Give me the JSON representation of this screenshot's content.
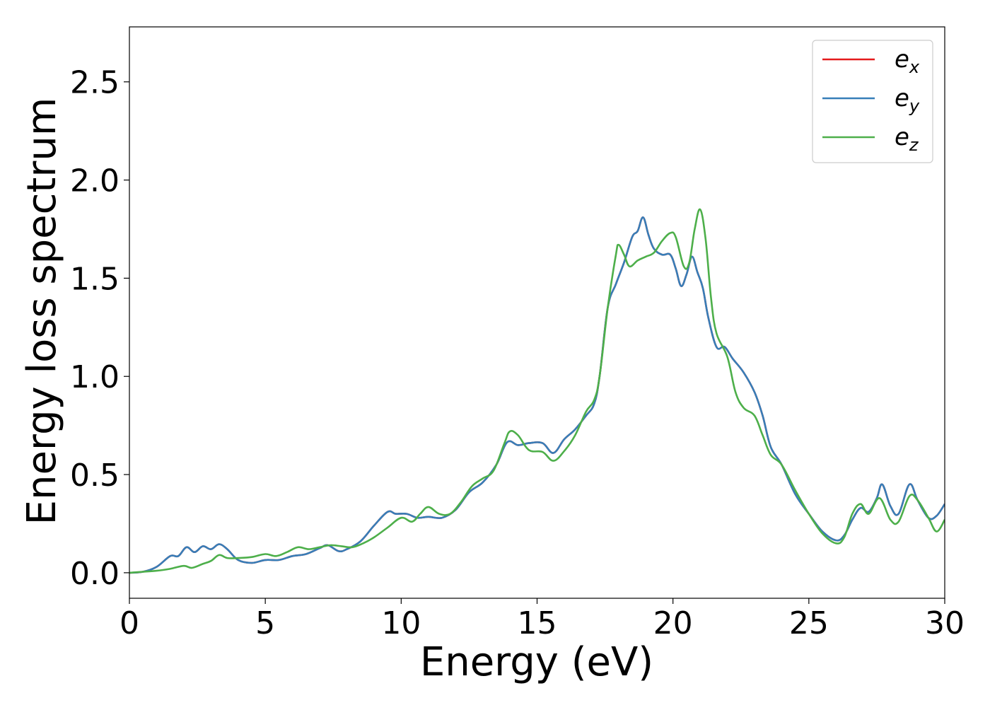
{
  "chart_data": {
    "type": "line",
    "title": "",
    "xlabel": "Energy (eV)",
    "ylabel": "Energy loss spectrum",
    "xlim": [
      0,
      30
    ],
    "ylim": [
      -0.13,
      2.78
    ],
    "xticks": [
      0,
      5,
      10,
      15,
      20,
      25,
      30
    ],
    "xtick_labels": [
      "0",
      "5",
      "10",
      "15",
      "20",
      "25",
      "30"
    ],
    "yticks": [
      0.0,
      0.5,
      1.0,
      1.5,
      2.0,
      2.5
    ],
    "ytick_labels": [
      "0.0",
      "0.5",
      "1.0",
      "1.5",
      "2.0",
      "2.5"
    ],
    "grid": false,
    "legend_position": "top-right",
    "series": [
      {
        "name": "e_x",
        "legend_base": "e",
        "legend_sub": "x",
        "color": "#e41a1c",
        "points": [
          [
            0,
            0.0
          ],
          [
            0.5,
            0.005
          ],
          [
            1.0,
            0.03
          ],
          [
            1.5,
            0.085
          ],
          [
            1.8,
            0.085
          ],
          [
            2.1,
            0.13
          ],
          [
            2.4,
            0.105
          ],
          [
            2.7,
            0.135
          ],
          [
            3.0,
            0.12
          ],
          [
            3.3,
            0.145
          ],
          [
            3.6,
            0.12
          ],
          [
            4.0,
            0.065
          ],
          [
            4.5,
            0.05
          ],
          [
            5.0,
            0.065
          ],
          [
            5.5,
            0.065
          ],
          [
            6.0,
            0.085
          ],
          [
            6.5,
            0.095
          ],
          [
            7.0,
            0.125
          ],
          [
            7.3,
            0.14
          ],
          [
            7.7,
            0.11
          ],
          [
            8.0,
            0.12
          ],
          [
            8.5,
            0.16
          ],
          [
            9.0,
            0.24
          ],
          [
            9.5,
            0.31
          ],
          [
            9.8,
            0.3
          ],
          [
            10.2,
            0.3
          ],
          [
            10.6,
            0.28
          ],
          [
            11.0,
            0.285
          ],
          [
            11.5,
            0.28
          ],
          [
            12.0,
            0.32
          ],
          [
            12.5,
            0.41
          ],
          [
            13.0,
            0.46
          ],
          [
            13.5,
            0.55
          ],
          [
            13.9,
            0.665
          ],
          [
            14.3,
            0.65
          ],
          [
            14.7,
            0.66
          ],
          [
            15.2,
            0.66
          ],
          [
            15.6,
            0.61
          ],
          [
            16.0,
            0.68
          ],
          [
            16.4,
            0.73
          ],
          [
            16.8,
            0.8
          ],
          [
            17.1,
            0.86
          ],
          [
            17.3,
            1.0
          ],
          [
            17.6,
            1.35
          ],
          [
            17.9,
            1.47
          ],
          [
            18.2,
            1.58
          ],
          [
            18.5,
            1.71
          ],
          [
            18.7,
            1.74
          ],
          [
            18.9,
            1.81
          ],
          [
            19.1,
            1.72
          ],
          [
            19.3,
            1.65
          ],
          [
            19.6,
            1.62
          ],
          [
            19.9,
            1.62
          ],
          [
            20.1,
            1.55
          ],
          [
            20.3,
            1.46
          ],
          [
            20.5,
            1.52
          ],
          [
            20.7,
            1.61
          ],
          [
            20.9,
            1.53
          ],
          [
            21.1,
            1.45
          ],
          [
            21.3,
            1.3
          ],
          [
            21.6,
            1.15
          ],
          [
            21.9,
            1.15
          ],
          [
            22.2,
            1.09
          ],
          [
            22.6,
            1.02
          ],
          [
            23.0,
            0.92
          ],
          [
            23.3,
            0.8
          ],
          [
            23.6,
            0.64
          ],
          [
            24.0,
            0.55
          ],
          [
            24.5,
            0.4
          ],
          [
            25.0,
            0.3
          ],
          [
            25.5,
            0.21
          ],
          [
            26.0,
            0.165
          ],
          [
            26.3,
            0.19
          ],
          [
            26.6,
            0.27
          ],
          [
            26.9,
            0.33
          ],
          [
            27.2,
            0.31
          ],
          [
            27.5,
            0.38
          ],
          [
            27.7,
            0.45
          ],
          [
            28.0,
            0.34
          ],
          [
            28.3,
            0.3
          ],
          [
            28.7,
            0.45
          ],
          [
            29.0,
            0.37
          ],
          [
            29.4,
            0.28
          ],
          [
            29.7,
            0.29
          ],
          [
            30.0,
            0.35
          ]
        ]
      },
      {
        "name": "e_y",
        "legend_base": "e",
        "legend_sub": "y",
        "color": "#377eb8",
        "points": [
          [
            0,
            0.0
          ],
          [
            0.5,
            0.005
          ],
          [
            1.0,
            0.03
          ],
          [
            1.5,
            0.085
          ],
          [
            1.8,
            0.085
          ],
          [
            2.1,
            0.13
          ],
          [
            2.4,
            0.105
          ],
          [
            2.7,
            0.135
          ],
          [
            3.0,
            0.12
          ],
          [
            3.3,
            0.145
          ],
          [
            3.6,
            0.12
          ],
          [
            4.0,
            0.065
          ],
          [
            4.5,
            0.05
          ],
          [
            5.0,
            0.065
          ],
          [
            5.5,
            0.065
          ],
          [
            6.0,
            0.085
          ],
          [
            6.5,
            0.095
          ],
          [
            7.0,
            0.125
          ],
          [
            7.3,
            0.14
          ],
          [
            7.7,
            0.11
          ],
          [
            8.0,
            0.12
          ],
          [
            8.5,
            0.16
          ],
          [
            9.0,
            0.24
          ],
          [
            9.5,
            0.31
          ],
          [
            9.8,
            0.3
          ],
          [
            10.2,
            0.3
          ],
          [
            10.6,
            0.28
          ],
          [
            11.0,
            0.285
          ],
          [
            11.5,
            0.28
          ],
          [
            12.0,
            0.32
          ],
          [
            12.5,
            0.41
          ],
          [
            13.0,
            0.46
          ],
          [
            13.5,
            0.55
          ],
          [
            13.9,
            0.665
          ],
          [
            14.3,
            0.65
          ],
          [
            14.7,
            0.66
          ],
          [
            15.2,
            0.66
          ],
          [
            15.6,
            0.61
          ],
          [
            16.0,
            0.68
          ],
          [
            16.4,
            0.73
          ],
          [
            16.8,
            0.8
          ],
          [
            17.1,
            0.86
          ],
          [
            17.3,
            1.0
          ],
          [
            17.6,
            1.35
          ],
          [
            17.9,
            1.47
          ],
          [
            18.2,
            1.58
          ],
          [
            18.5,
            1.71
          ],
          [
            18.7,
            1.74
          ],
          [
            18.9,
            1.81
          ],
          [
            19.1,
            1.72
          ],
          [
            19.3,
            1.65
          ],
          [
            19.6,
            1.62
          ],
          [
            19.9,
            1.62
          ],
          [
            20.1,
            1.55
          ],
          [
            20.3,
            1.46
          ],
          [
            20.5,
            1.52
          ],
          [
            20.7,
            1.61
          ],
          [
            20.9,
            1.53
          ],
          [
            21.1,
            1.45
          ],
          [
            21.3,
            1.3
          ],
          [
            21.6,
            1.15
          ],
          [
            21.9,
            1.15
          ],
          [
            22.2,
            1.09
          ],
          [
            22.6,
            1.02
          ],
          [
            23.0,
            0.92
          ],
          [
            23.3,
            0.8
          ],
          [
            23.6,
            0.64
          ],
          [
            24.0,
            0.55
          ],
          [
            24.5,
            0.4
          ],
          [
            25.0,
            0.3
          ],
          [
            25.5,
            0.21
          ],
          [
            26.0,
            0.165
          ],
          [
            26.3,
            0.19
          ],
          [
            26.6,
            0.27
          ],
          [
            26.9,
            0.33
          ],
          [
            27.2,
            0.31
          ],
          [
            27.5,
            0.38
          ],
          [
            27.7,
            0.45
          ],
          [
            28.0,
            0.34
          ],
          [
            28.3,
            0.3
          ],
          [
            28.7,
            0.45
          ],
          [
            29.0,
            0.37
          ],
          [
            29.4,
            0.28
          ],
          [
            29.7,
            0.29
          ],
          [
            30.0,
            0.35
          ]
        ]
      },
      {
        "name": "e_z",
        "legend_base": "e",
        "legend_sub": "z",
        "color": "#4daf4a",
        "points": [
          [
            0,
            0.0
          ],
          [
            0.5,
            0.005
          ],
          [
            1.0,
            0.01
          ],
          [
            1.5,
            0.02
          ],
          [
            2.0,
            0.035
          ],
          [
            2.3,
            0.025
          ],
          [
            2.7,
            0.045
          ],
          [
            3.0,
            0.06
          ],
          [
            3.3,
            0.09
          ],
          [
            3.6,
            0.075
          ],
          [
            4.0,
            0.075
          ],
          [
            4.5,
            0.08
          ],
          [
            5.0,
            0.095
          ],
          [
            5.4,
            0.085
          ],
          [
            5.8,
            0.105
          ],
          [
            6.2,
            0.13
          ],
          [
            6.6,
            0.12
          ],
          [
            7.0,
            0.13
          ],
          [
            7.4,
            0.14
          ],
          [
            7.8,
            0.135
          ],
          [
            8.2,
            0.13
          ],
          [
            8.6,
            0.15
          ],
          [
            9.0,
            0.18
          ],
          [
            9.5,
            0.23
          ],
          [
            10.0,
            0.28
          ],
          [
            10.4,
            0.26
          ],
          [
            10.7,
            0.3
          ],
          [
            11.0,
            0.335
          ],
          [
            11.4,
            0.3
          ],
          [
            11.8,
            0.3
          ],
          [
            12.2,
            0.36
          ],
          [
            12.6,
            0.44
          ],
          [
            13.0,
            0.48
          ],
          [
            13.4,
            0.52
          ],
          [
            13.8,
            0.66
          ],
          [
            14.0,
            0.72
          ],
          [
            14.3,
            0.7
          ],
          [
            14.7,
            0.625
          ],
          [
            15.2,
            0.615
          ],
          [
            15.6,
            0.57
          ],
          [
            16.0,
            0.62
          ],
          [
            16.4,
            0.7
          ],
          [
            16.8,
            0.82
          ],
          [
            17.1,
            0.88
          ],
          [
            17.3,
            1.0
          ],
          [
            17.6,
            1.35
          ],
          [
            17.9,
            1.62
          ],
          [
            18.0,
            1.67
          ],
          [
            18.2,
            1.62
          ],
          [
            18.4,
            1.56
          ],
          [
            18.7,
            1.59
          ],
          [
            19.0,
            1.61
          ],
          [
            19.3,
            1.63
          ],
          [
            19.6,
            1.69
          ],
          [
            19.9,
            1.73
          ],
          [
            20.1,
            1.71
          ],
          [
            20.4,
            1.56
          ],
          [
            20.6,
            1.58
          ],
          [
            20.8,
            1.75
          ],
          [
            21.0,
            1.85
          ],
          [
            21.2,
            1.7
          ],
          [
            21.4,
            1.4
          ],
          [
            21.6,
            1.22
          ],
          [
            22.0,
            1.1
          ],
          [
            22.3,
            0.92
          ],
          [
            22.6,
            0.84
          ],
          [
            23.0,
            0.8
          ],
          [
            23.3,
            0.7
          ],
          [
            23.6,
            0.6
          ],
          [
            24.0,
            0.55
          ],
          [
            24.5,
            0.42
          ],
          [
            25.0,
            0.3
          ],
          [
            25.5,
            0.2
          ],
          [
            26.0,
            0.15
          ],
          [
            26.3,
            0.18
          ],
          [
            26.6,
            0.3
          ],
          [
            26.9,
            0.35
          ],
          [
            27.2,
            0.3
          ],
          [
            27.6,
            0.38
          ],
          [
            28.0,
            0.27
          ],
          [
            28.3,
            0.26
          ],
          [
            28.7,
            0.39
          ],
          [
            29.0,
            0.37
          ],
          [
            29.4,
            0.28
          ],
          [
            29.7,
            0.21
          ],
          [
            30.0,
            0.27
          ]
        ]
      }
    ]
  }
}
